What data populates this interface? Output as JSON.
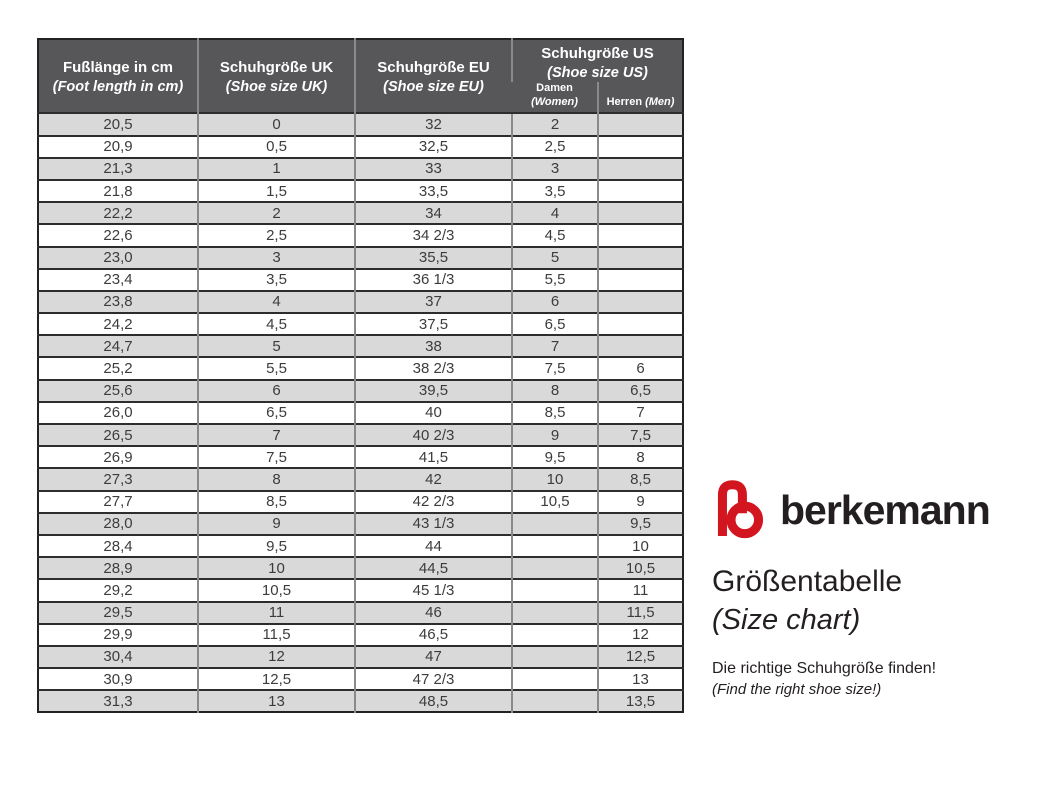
{
  "brand": {
    "logo_icon": "berkemann-b-logo",
    "logo_color": "#d2151f",
    "name": "berkemann",
    "title": "Größentabelle",
    "title_translation": "(Size chart)",
    "tagline": "Die richtige Schuhgröße finden!",
    "tagline_translation": "(Find the right shoe size!)"
  },
  "table": {
    "header_bg": "#57575a",
    "row_shade_color": "#d9d9d9",
    "columns": [
      {
        "label": "Fußlänge in cm",
        "sub": "(Foot length in cm)"
      },
      {
        "label": "Schuhgröße UK",
        "sub": "(Shoe size UK)"
      },
      {
        "label": "Schuhgröße EU",
        "sub": "(Shoe size EU)"
      },
      {
        "label": "Schuhgröße US",
        "sub": "(Shoe size US)"
      }
    ],
    "us_subcolumns": [
      {
        "label": "Damen",
        "sub": "(Women)"
      },
      {
        "label": "Herren",
        "sub": "(Men)"
      }
    ]
  },
  "chart_data": {
    "type": "table",
    "title": "Größentabelle (Size chart)",
    "columns": [
      "Fußlänge in cm (Foot length in cm)",
      "Schuhgröße UK (Shoe size UK)",
      "Schuhgröße EU (Shoe size EU)",
      "Schuhgröße US Damen (Women)",
      "Schuhgröße US Herren (Men)"
    ],
    "rows": [
      [
        "20,5",
        "0",
        "32",
        "2",
        ""
      ],
      [
        "20,9",
        "0,5",
        "32,5",
        "2,5",
        ""
      ],
      [
        "21,3",
        "1",
        "33",
        "3",
        ""
      ],
      [
        "21,8",
        "1,5",
        "33,5",
        "3,5",
        ""
      ],
      [
        "22,2",
        "2",
        "34",
        "4",
        ""
      ],
      [
        "22,6",
        "2,5",
        "34 2/3",
        "4,5",
        ""
      ],
      [
        "23,0",
        "3",
        "35,5",
        "5",
        ""
      ],
      [
        "23,4",
        "3,5",
        "36 1/3",
        "5,5",
        ""
      ],
      [
        "23,8",
        "4",
        "37",
        "6",
        ""
      ],
      [
        "24,2",
        "4,5",
        "37,5",
        "6,5",
        ""
      ],
      [
        "24,7",
        "5",
        "38",
        "7",
        ""
      ],
      [
        "25,2",
        "5,5",
        "38 2/3",
        "7,5",
        "6"
      ],
      [
        "25,6",
        "6",
        "39,5",
        "8",
        "6,5"
      ],
      [
        "26,0",
        "6,5",
        "40",
        "8,5",
        "7"
      ],
      [
        "26,5",
        "7",
        "40 2/3",
        "9",
        "7,5"
      ],
      [
        "26,9",
        "7,5",
        "41,5",
        "9,5",
        "8"
      ],
      [
        "27,3",
        "8",
        "42",
        "10",
        "8,5"
      ],
      [
        "27,7",
        "8,5",
        "42 2/3",
        "10,5",
        "9"
      ],
      [
        "28,0",
        "9",
        "43 1/3",
        "",
        "9,5"
      ],
      [
        "28,4",
        "9,5",
        "44",
        "",
        "10"
      ],
      [
        "28,9",
        "10",
        "44,5",
        "",
        "10,5"
      ],
      [
        "29,2",
        "10,5",
        "45 1/3",
        "",
        "11"
      ],
      [
        "29,5",
        "11",
        "46",
        "",
        "11,5"
      ],
      [
        "29,9",
        "11,5",
        "46,5",
        "",
        "12"
      ],
      [
        "30,4",
        "12",
        "47",
        "",
        "12,5"
      ],
      [
        "30,9",
        "12,5",
        "47 2/3",
        "",
        "13"
      ],
      [
        "31,3",
        "13",
        "48,5",
        "",
        "13,5"
      ]
    ]
  }
}
